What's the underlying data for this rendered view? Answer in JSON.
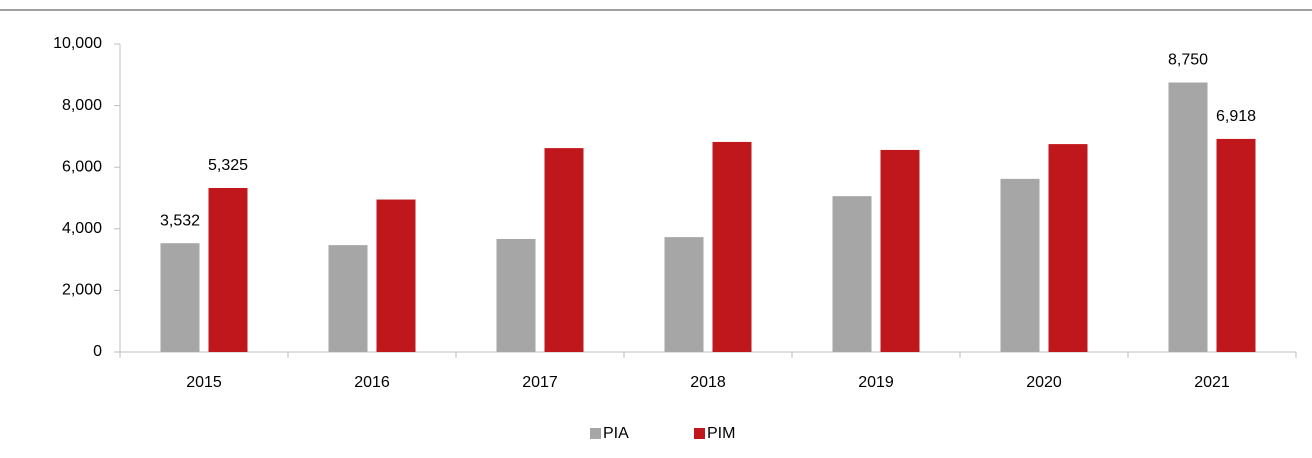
{
  "chart_data": {
    "type": "bar",
    "categories": [
      "2015",
      "2016",
      "2017",
      "2018",
      "2019",
      "2020",
      "2021"
    ],
    "series": [
      {
        "name": "PIA",
        "color": "#a6a6a6",
        "values": [
          3532,
          3470,
          3670,
          3730,
          5060,
          5620,
          8750
        ],
        "value_labels": [
          "3,532",
          null,
          null,
          null,
          null,
          null,
          "8,750"
        ]
      },
      {
        "name": "PIM",
        "color": "#c0171c",
        "values": [
          5325,
          4950,
          6620,
          6820,
          6560,
          6750,
          6918
        ],
        "value_labels": [
          "5,325",
          null,
          null,
          null,
          null,
          null,
          "6,918"
        ]
      }
    ],
    "ylim": [
      0,
      10000
    ],
    "yticks": [
      0,
      {
        "value": 2000,
        "label": "2,000"
      },
      {
        "value": 4000,
        "label": "4,000"
      },
      {
        "value": 6000,
        "label": "6,000"
      },
      {
        "value": 8000,
        "label": "8,000"
      },
      {
        "value": 10000,
        "label": "10,000"
      }
    ],
    "grid": false,
    "legend": "bottom"
  }
}
